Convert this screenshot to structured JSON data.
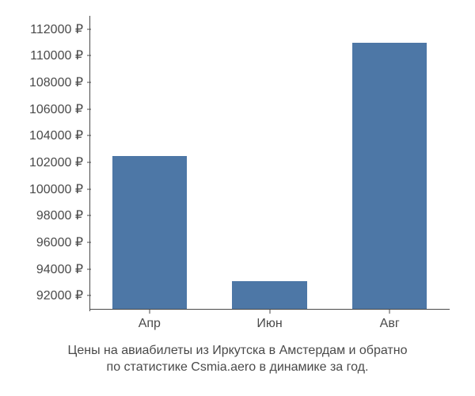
{
  "chart": {
    "type": "bar",
    "background_color": "#ffffff",
    "bar_color": "#4d77a6",
    "axis_color": "#4a4a4a",
    "text_color": "#4a4a4a",
    "label_fontsize": 16,
    "caption_fontsize": 16,
    "currency_symbol": "₽",
    "y_min": 91000,
    "y_max": 113000,
    "y_ticks": [
      92000,
      94000,
      96000,
      98000,
      100000,
      102000,
      104000,
      106000,
      108000,
      110000,
      112000
    ],
    "y_tick_labels": [
      "92000 ₽",
      "94000 ₽",
      "96000 ₽",
      "98000 ₽",
      "100000 ₽",
      "102000 ₽",
      "104000 ₽",
      "106000 ₽",
      "108000 ₽",
      "110000 ₽",
      "112000 ₽"
    ],
    "categories": [
      "Апр",
      "Июн",
      "Авг"
    ],
    "values": [
      102500,
      93100,
      111000
    ],
    "bar_width_ratio": 0.62,
    "caption_line1": "Цены на авиабилеты из Иркутска в Амстердам и обратно",
    "caption_line2": "по статистике Csmia.aero в динамике за год."
  }
}
